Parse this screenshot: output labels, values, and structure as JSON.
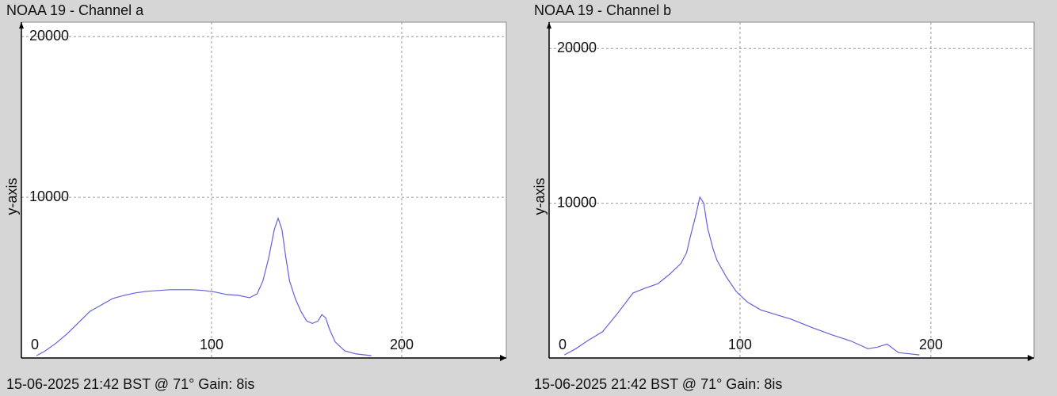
{
  "chart_data": [
    {
      "type": "line",
      "title": "NOAA 19 - Channel a",
      "ylabel": "y-axis",
      "footer": "15-06-2025 21:42 BST @ 71° Gain: 8is",
      "xlim": [
        0,
        255
      ],
      "xticks": [
        0,
        100,
        200
      ],
      "ylim": [
        0,
        20900
      ],
      "yticks": [
        10000,
        20000
      ],
      "grid": true,
      "x": [
        8,
        12,
        18,
        24,
        30,
        36,
        42,
        48,
        54,
        60,
        66,
        72,
        78,
        84,
        90,
        96,
        102,
        108,
        114,
        120,
        124,
        127,
        130,
        133,
        135,
        137,
        139,
        141,
        144,
        147,
        150,
        153,
        156,
        158,
        160,
        162,
        165,
        170,
        176,
        184
      ],
      "series": [
        {
          "color": "#6262d8",
          "values": [
            150,
            400,
            900,
            1500,
            2200,
            2900,
            3300,
            3700,
            3900,
            4050,
            4150,
            4200,
            4250,
            4250,
            4250,
            4200,
            4100,
            3950,
            3900,
            3750,
            4000,
            4800,
            6200,
            8000,
            8700,
            8000,
            6300,
            4800,
            3700,
            2900,
            2300,
            2150,
            2300,
            2700,
            2500,
            1800,
            1000,
            450,
            250,
            150
          ]
        }
      ]
    },
    {
      "type": "line",
      "title": "NOAA 19 - Channel b",
      "ylabel": "y-axis",
      "footer": "15-06-2025 21:42 BST @ 71° Gain: 8is",
      "xlim": [
        0,
        254
      ],
      "xticks": [
        0,
        100,
        200
      ],
      "ylim": [
        0,
        21700
      ],
      "yticks": [
        10000,
        20000
      ],
      "grid": true,
      "x": [
        8,
        14,
        20,
        28,
        36,
        44,
        50,
        57,
        63,
        69,
        72,
        74,
        77,
        79,
        81,
        83,
        86,
        88,
        93,
        98,
        104,
        111,
        119,
        127,
        137,
        148,
        158,
        167,
        172,
        177,
        183,
        194
      ],
      "series": [
        {
          "color": "#6262d8",
          "values": [
            200,
            600,
            1100,
            1700,
            2900,
            4200,
            4500,
            4800,
            5400,
            6100,
            6800,
            7850,
            9300,
            10400,
            10000,
            8400,
            7000,
            6300,
            5200,
            4300,
            3600,
            3100,
            2800,
            2500,
            2000,
            1500,
            1100,
            600,
            700,
            900,
            350,
            200
          ]
        }
      ]
    }
  ]
}
